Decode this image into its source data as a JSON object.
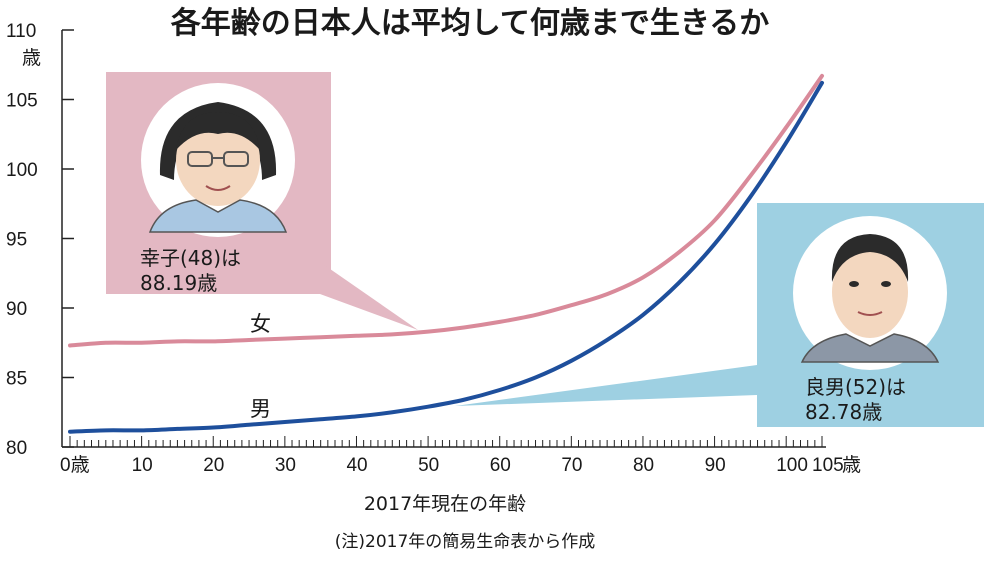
{
  "chart_data": {
    "type": "line",
    "title": "各年齢の日本人は平均して何歳まで生きるか",
    "xlabel": "2017年現在の年齢",
    "ylabel": "",
    "y_unit": "歳",
    "x_unit": "歳",
    "xlim": [
      0,
      105
    ],
    "ylim": [
      80,
      110
    ],
    "x_ticks": [
      0,
      10,
      20,
      30,
      40,
      50,
      60,
      70,
      80,
      90,
      100,
      105
    ],
    "x_tick_labels": [
      "0歳",
      "10",
      "20",
      "30",
      "40",
      "50",
      "60",
      "70",
      "80",
      "90",
      "100",
      "105"
    ],
    "y_ticks": [
      80,
      85,
      90,
      95,
      100,
      105,
      110
    ],
    "y_tick_labels": [
      "80",
      "85",
      "90",
      "95",
      "100",
      "105",
      "110"
    ],
    "x": [
      0,
      5,
      10,
      15,
      20,
      25,
      30,
      35,
      40,
      45,
      50,
      55,
      60,
      65,
      70,
      75,
      80,
      85,
      90,
      95,
      100,
      105
    ],
    "series": [
      {
        "name": "女",
        "color": "#d98a9a",
        "values": [
          87.3,
          87.5,
          87.5,
          87.6,
          87.6,
          87.7,
          87.8,
          87.9,
          88.0,
          88.1,
          88.3,
          88.6,
          89.0,
          89.5,
          90.2,
          91.0,
          92.2,
          94.0,
          96.3,
          99.5,
          103.0,
          106.7
        ]
      },
      {
        "name": "男",
        "color": "#1e4f9c",
        "values": [
          81.1,
          81.2,
          81.2,
          81.3,
          81.4,
          81.6,
          81.8,
          82.0,
          82.2,
          82.5,
          82.9,
          83.4,
          84.1,
          85.0,
          86.2,
          87.7,
          89.5,
          91.8,
          94.6,
          98.0,
          101.9,
          106.2
        ]
      }
    ],
    "annotations": [
      {
        "person": "幸子",
        "age": 48,
        "value": 88.19,
        "line1": "幸子(48)は",
        "line2": "88.19歳",
        "series": "女"
      },
      {
        "person": "良男",
        "age": 52,
        "value": 82.78,
        "line1": "良男(52)は",
        "line2": "82.78歳",
        "series": "男"
      }
    ],
    "note": "(注)2017年の簡易生命表から作成",
    "legend": "inline",
    "grid": false
  },
  "colors": {
    "female_box": "#e3b8c3",
    "male_box": "#9ed0e2",
    "axis": "#222222"
  }
}
